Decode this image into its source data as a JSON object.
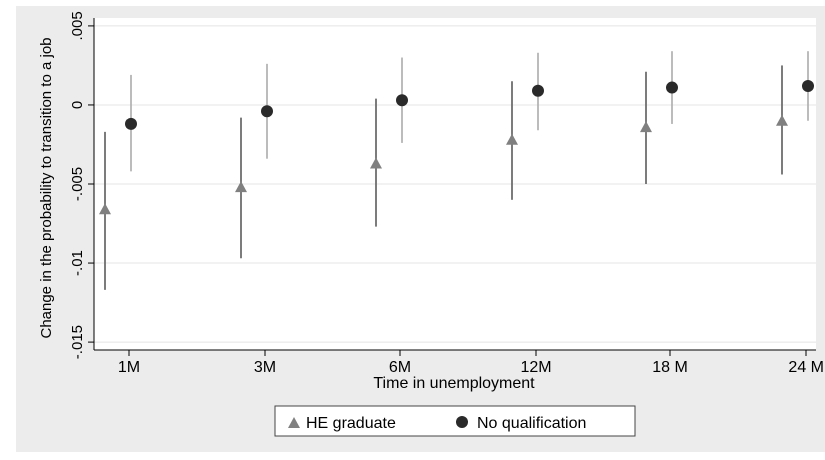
{
  "chart_data": {
    "type": "scatter",
    "categories": [
      "1M",
      "3M",
      "6M",
      "12M",
      "18 M",
      "24 M"
    ],
    "xlabel": "Time in unemployment",
    "ylabel": "Change in the probability to transition to a job",
    "ylim": [
      -0.0155,
      0.0055
    ],
    "yticks": [
      {
        "value": 0.005,
        "label": ".005"
      },
      {
        "value": 0,
        "label": "0"
      },
      {
        "value": -0.005,
        "label": "-.005"
      },
      {
        "value": -0.01,
        "label": "-.01"
      },
      {
        "value": -0.015,
        "label": "-.015"
      }
    ],
    "grid": true,
    "legend_position": "bottom",
    "series": [
      {
        "name": "HE graduate",
        "marker": "triangle",
        "color": "#808080",
        "values": [
          -0.0066,
          -0.0052,
          -0.0037,
          -0.0022,
          -0.0014,
          -0.001
        ],
        "ci_low": [
          -0.0117,
          -0.0097,
          -0.0077,
          -0.006,
          -0.005,
          -0.0044
        ],
        "ci_high": [
          -0.0017,
          -0.0008,
          0.0004,
          0.0015,
          0.0021,
          0.0025
        ]
      },
      {
        "name": "No qualification",
        "marker": "circle",
        "color": "#2a2a2a",
        "values": [
          -0.0012,
          -0.0004,
          0.0003,
          0.0009,
          0.0011,
          0.0012
        ],
        "ci_low": [
          -0.0042,
          -0.0034,
          -0.0024,
          -0.0016,
          -0.0012,
          -0.001
        ],
        "ci_high": [
          0.0019,
          0.0026,
          0.003,
          0.0033,
          0.0034,
          0.0034
        ]
      }
    ]
  },
  "colors": {
    "outer_background": "#ececec",
    "plot_background": "#ffffff",
    "grid": "#e4e4e4",
    "axis": "#000000",
    "ci_he_graduate": "#6e6e6e",
    "ci_no_qualification": "#b4b4b4"
  }
}
